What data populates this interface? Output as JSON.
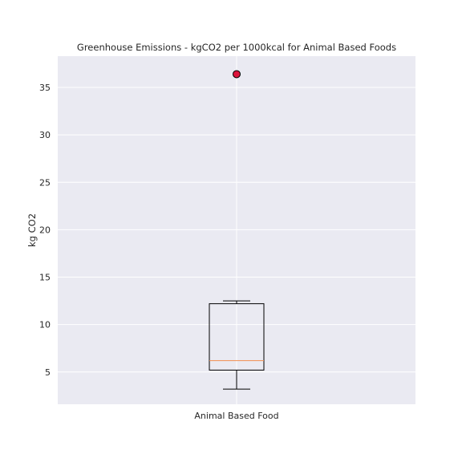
{
  "chart_data": {
    "type": "box",
    "title": "Greenhouse Emissions - kgCO2 per 1000kcal for Animal Based Foods",
    "xlabel": "",
    "ylabel": "kg CO2",
    "categories": [
      "Animal Based Food"
    ],
    "ylim": [
      1.6,
      38.3
    ],
    "yticks": [
      5,
      10,
      15,
      20,
      25,
      30,
      35
    ],
    "grid": true,
    "boxes": [
      {
        "category": "Animal Based Food",
        "whisker_low": 3.2,
        "q1": 5.2,
        "median": 6.2,
        "q3": 12.2,
        "whisker_high": 12.5,
        "outliers": [
          36.4
        ]
      }
    ],
    "colors": {
      "background": "#eaeaf2",
      "grid": "#ffffff",
      "box_edge": "#000000",
      "median": "#f28e50",
      "outlier_fill": "#dc143c",
      "outlier_edge": "#000000"
    }
  }
}
